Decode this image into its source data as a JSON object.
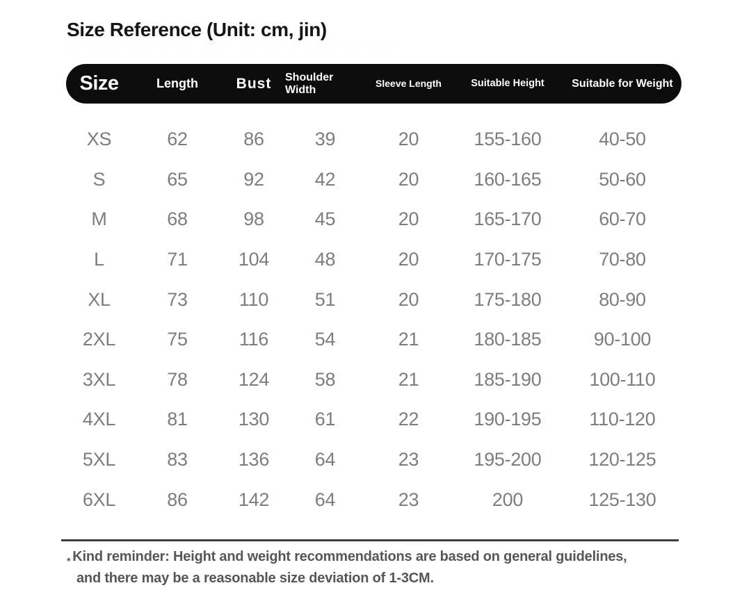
{
  "page": {
    "title": "Size Reference (Unit: cm, jin)",
    "ghost_text": "·· ···· ··· · ·· ···· ·· ··· · ···· ·· ···"
  },
  "table": {
    "header": {
      "size": "Size",
      "length": "Length",
      "bust": "Bust",
      "shoulder": "Shoulder Width",
      "sleeve": "Sleeve Length",
      "height": "Suitable Height",
      "weight": "Suitable for Weight"
    },
    "rows": [
      {
        "size": "XS",
        "length": "62",
        "bust": "86",
        "shoulder": "39",
        "sleeve": "20",
        "height": "155-160",
        "weight": "40-50"
      },
      {
        "size": "S",
        "length": "65",
        "bust": "92",
        "shoulder": "42",
        "sleeve": "20",
        "height": "160-165",
        "weight": "50-60"
      },
      {
        "size": "M",
        "length": "68",
        "bust": "98",
        "shoulder": "45",
        "sleeve": "20",
        "height": "165-170",
        "weight": "60-70"
      },
      {
        "size": "L",
        "length": "71",
        "bust": "104",
        "shoulder": "48",
        "sleeve": "20",
        "height": "170-175",
        "weight": "70-80"
      },
      {
        "size": "XL",
        "length": "73",
        "bust": "110",
        "shoulder": "51",
        "sleeve": "20",
        "height": "175-180",
        "weight": "80-90"
      },
      {
        "size": "2XL",
        "length": "75",
        "bust": "116",
        "shoulder": "54",
        "sleeve": "21",
        "height": "180-185",
        "weight": "90-100"
      },
      {
        "size": "3XL",
        "length": "78",
        "bust": "124",
        "shoulder": "58",
        "sleeve": "21",
        "height": "185-190",
        "weight": "100-110"
      },
      {
        "size": "4XL",
        "length": "81",
        "bust": "130",
        "shoulder": "61",
        "sleeve": "22",
        "height": "190-195",
        "weight": "110-120"
      },
      {
        "size": "5XL",
        "length": "83",
        "bust": "136",
        "shoulder": "64",
        "sleeve": "23",
        "height": "195-200",
        "weight": "120-125"
      },
      {
        "size": "6XL",
        "length": "86",
        "bust": "142",
        "shoulder": "64",
        "sleeve": "23",
        "height": "200",
        "weight": "125-130"
      }
    ]
  },
  "note": {
    "star": "*",
    "line1": "Kind reminder: Height and weight recommendations are based on general guidelines,",
    "line2": "and there may be a reasonable size deviation of 1-3CM."
  },
  "colors": {
    "header_bg": "#0c0c0c",
    "header_text": "#ffffff",
    "body_text": "#7d7d7d",
    "title_text": "#151515",
    "note_text": "#565656",
    "divider": "#3e3e3e"
  }
}
